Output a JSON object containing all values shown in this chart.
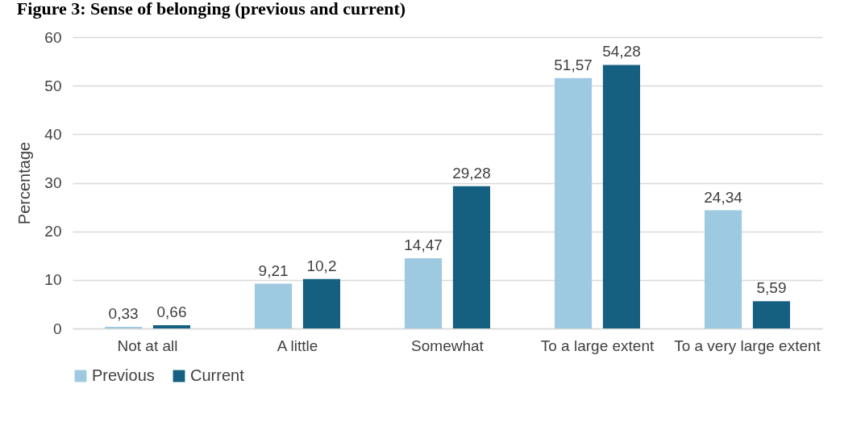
{
  "chart_data": {
    "type": "bar",
    "title": "Figure 3: Sense of belonging (previous and current)",
    "ylabel": "Percentage",
    "categories": [
      "Not at all",
      "A little",
      "Somewhat",
      "To a large extent",
      "To a very large extent"
    ],
    "series": [
      {
        "name": "Previous",
        "color": "#9ecae1",
        "values": [
          0.33,
          9.21,
          14.47,
          51.57,
          24.34
        ],
        "value_labels": [
          "0,33",
          "9,21",
          "14,47",
          "51,57",
          "24,34"
        ]
      },
      {
        "name": "Current",
        "color": "#155f81",
        "values": [
          0.66,
          10.2,
          29.28,
          54.28,
          5.59
        ],
        "value_labels": [
          "0,66",
          "10,2",
          "29,28",
          "54,28",
          "5,59"
        ]
      }
    ],
    "ylim": [
      0,
      60
    ],
    "yticks": [
      0,
      10,
      20,
      30,
      40,
      50,
      60
    ],
    "grid": "y",
    "legend": "bottom"
  }
}
